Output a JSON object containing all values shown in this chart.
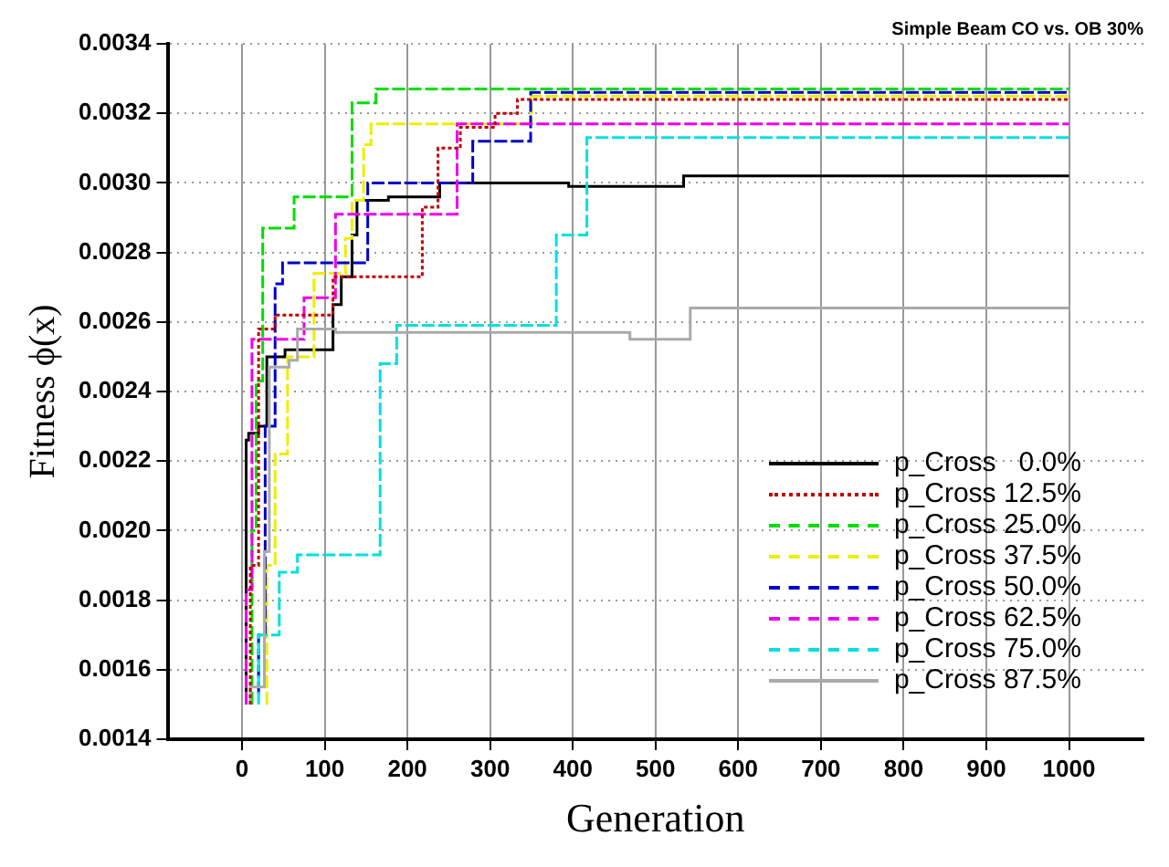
{
  "chart_data": {
    "type": "step",
    "title": "Simple Beam CO vs. OB 30%",
    "xlabel": "Generation",
    "ylabel": "Fitness ϕ(x)",
    "xlim": [
      -90,
      1090
    ],
    "xticks": [
      0,
      100,
      200,
      300,
      400,
      500,
      600,
      700,
      800,
      900,
      1000
    ],
    "ylim": [
      0.0014,
      0.0034
    ],
    "yticks": [
      0.0014,
      0.0016,
      0.0018,
      {
        "value": 0.002,
        "label": "0.0020"
      },
      0.0022,
      0.0024,
      0.0026,
      0.0028,
      {
        "value": 0.003,
        "label": "0.0030"
      },
      0.0032,
      0.0034
    ],
    "grid": true,
    "legend": "bottom right",
    "marker": "none",
    "series": [
      {
        "name": "p_Cross   0.0%",
        "color": "#000000",
        "line_style": "solid",
        "x": [
          5,
          8,
          20,
          30,
          52,
          110,
          120,
          133,
          139,
          177,
          239,
          395,
          534,
          870,
          1000
        ],
        "values": [
          0.0015,
          0.00226,
          0.00228,
          0.0023,
          0.0025,
          0.00252,
          0.00265,
          0.00273,
          0.00285,
          0.00295,
          0.00296,
          0.003,
          0.00299,
          0.00302,
          0.00302
        ]
      },
      {
        "name": "p_Cross 12.5%",
        "color": "#c00000",
        "line_style": "dotted",
        "x": [
          10,
          20,
          40,
          110,
          218,
          237,
          264,
          306,
          333,
          364,
          1000
        ],
        "values": [
          0.0015,
          0.0019,
          0.00258,
          0.00262,
          0.00273,
          0.00293,
          0.0031,
          0.00316,
          0.0032,
          0.00324,
          0.00324
        ]
      },
      {
        "name": "p_Cross 25.0%",
        "color": "#00dd00",
        "line_style": "dashed",
        "x": [
          12,
          17,
          25,
          63,
          133,
          162,
          252,
          1000
        ],
        "values": [
          0.0015,
          0.002,
          0.00243,
          0.00287,
          0.00296,
          0.00323,
          0.00327,
          0.00327
        ]
      },
      {
        "name": "p_Cross 37.5%",
        "color": "#eeee00",
        "line_style": "dashed",
        "x": [
          30,
          40,
          55,
          87,
          125,
          133,
          147,
          156,
          350,
          507,
          1000
        ],
        "values": [
          0.0015,
          0.0019,
          0.00222,
          0.0025,
          0.00274,
          0.00284,
          0.00295,
          0.00311,
          0.00317,
          0.00325,
          0.00325
        ]
      },
      {
        "name": "p_Cross 50.0%",
        "color": "#0000cc",
        "line_style": "dashed",
        "x": [
          20,
          28,
          40,
          49,
          152,
          279,
          349,
          494,
          1000
        ],
        "values": [
          0.00153,
          0.0017,
          0.0023,
          0.00271,
          0.00277,
          0.003,
          0.00312,
          0.00326,
          0.00326
        ]
      },
      {
        "name": "p_Cross 62.5%",
        "color": "#ee00ee",
        "line_style": "dashed",
        "x": [
          5,
          12,
          75,
          113,
          260,
          358,
          1000
        ],
        "values": [
          0.0015,
          0.00183,
          0.00255,
          0.00267,
          0.00291,
          0.00317,
          0.00317
        ]
      },
      {
        "name": "p_Cross 75.0%",
        "color": "#00e0e0",
        "line_style": "dashed",
        "x": [
          20,
          45,
          67,
          167,
          187,
          380,
          417,
          827,
          1000
        ],
        "values": [
          0.0015,
          0.0017,
          0.00188,
          0.00193,
          0.00248,
          0.00259,
          0.00285,
          0.00313,
          0.00313
        ]
      },
      {
        "name": "p_Cross 87.5%",
        "color": "#aaaaaa",
        "line_style": "solid",
        "x": [
          10,
          27,
          33,
          57,
          67,
          113,
          469,
          542,
          576,
          1000
        ],
        "values": [
          0.0015,
          0.00155,
          0.00194,
          0.00247,
          0.00249,
          0.00258,
          0.00257,
          0.00255,
          0.00264,
          0.00264
        ]
      }
    ]
  }
}
